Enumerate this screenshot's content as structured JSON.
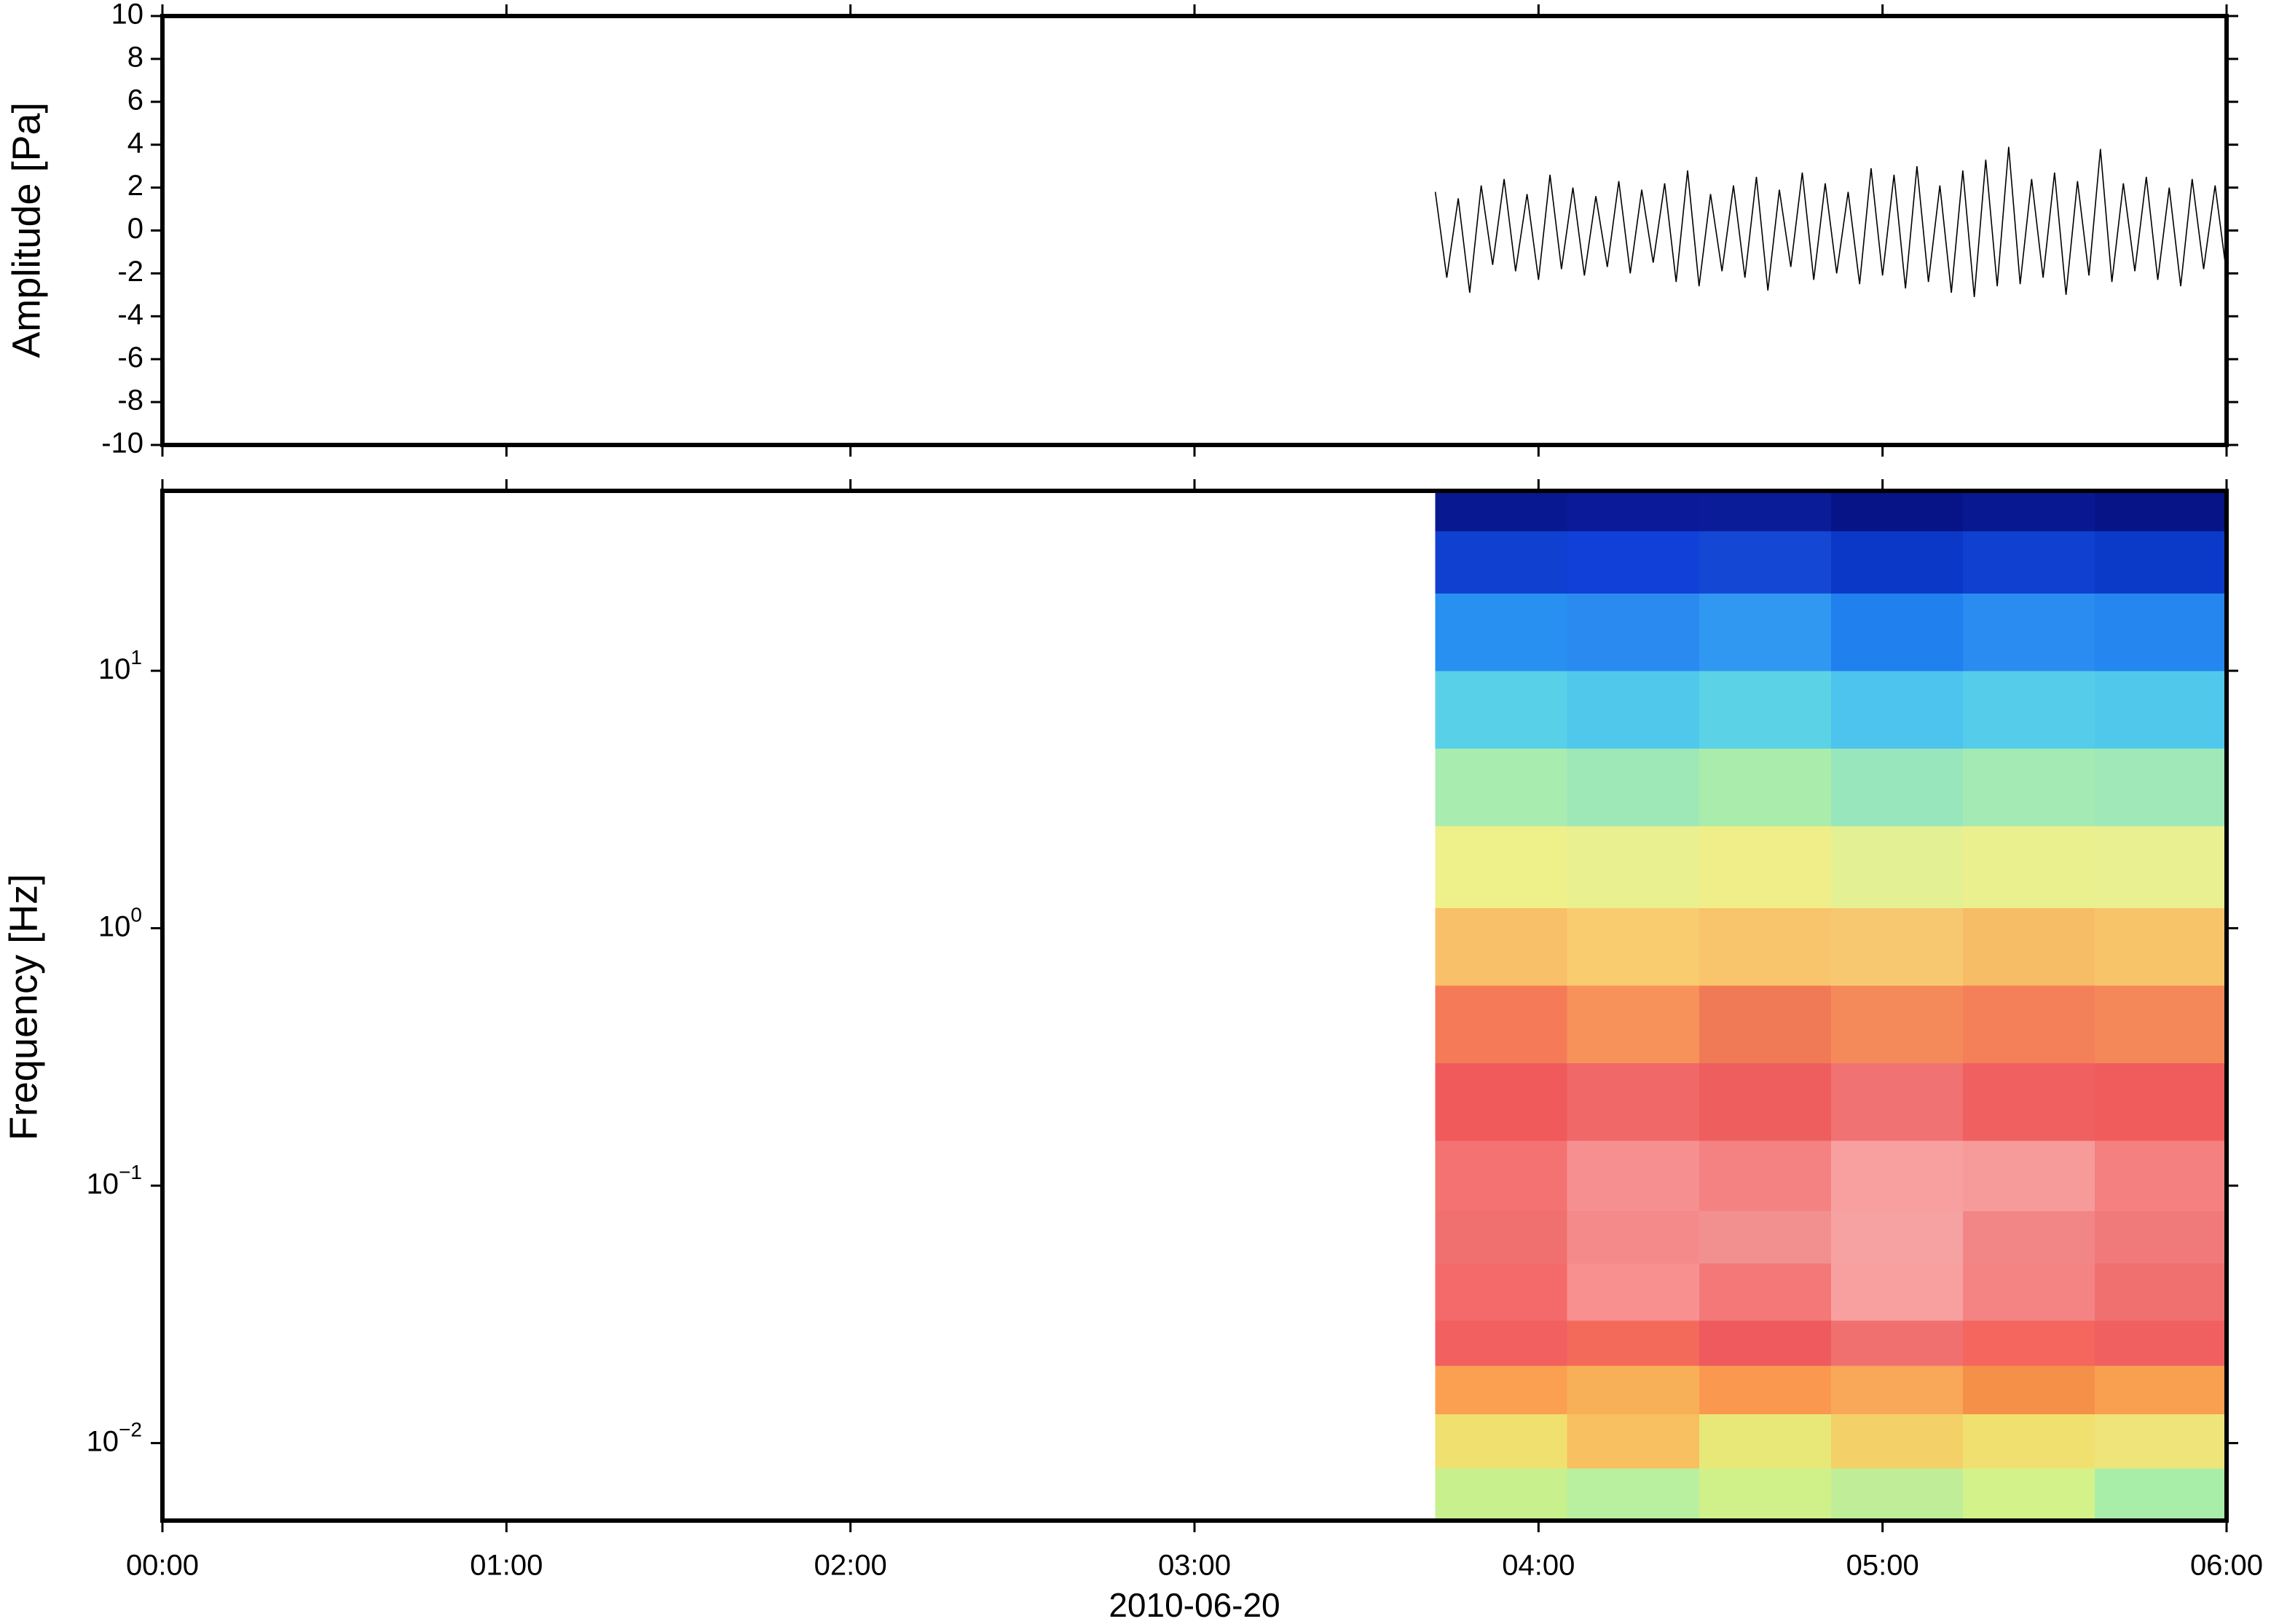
{
  "chart_data": [
    {
      "type": "line",
      "ylabel": "Amplitude [Pa]",
      "color": "#000000",
      "x": [
        222,
        224,
        226,
        228,
        230,
        232,
        234,
        236,
        238,
        240,
        242,
        244,
        246,
        248,
        250,
        252,
        254,
        256,
        258,
        260,
        262,
        264,
        266,
        268,
        270,
        272,
        274,
        276,
        278,
        280,
        282,
        284,
        286,
        288,
        290,
        292,
        294,
        296,
        298,
        300,
        302,
        304,
        306,
        308,
        310,
        312,
        314,
        316,
        318,
        320,
        322,
        324,
        326,
        328,
        330,
        332,
        334,
        336,
        338,
        340,
        342,
        344,
        346,
        348,
        350,
        352,
        354,
        356,
        358,
        360
      ],
      "values": [
        1.8,
        -2.2,
        1.5,
        -2.9,
        2.1,
        -1.6,
        2.4,
        -1.9,
        1.7,
        -2.3,
        2.6,
        -1.8,
        2.0,
        -2.1,
        1.6,
        -1.7,
        2.3,
        -2.0,
        1.9,
        -1.5,
        2.2,
        -2.4,
        2.8,
        -2.6,
        1.7,
        -1.9,
        2.1,
        -2.2,
        2.5,
        -2.8,
        1.9,
        -1.7,
        2.7,
        -2.3,
        2.2,
        -2.0,
        1.8,
        -2.5,
        2.9,
        -2.1,
        2.6,
        -2.7,
        3.0,
        -2.4,
        2.1,
        -2.9,
        2.8,
        -3.1,
        3.3,
        -2.6,
        3.9,
        -2.5,
        2.4,
        -2.2,
        2.7,
        -3.0,
        2.3,
        -2.1,
        3.8,
        -2.4,
        2.2,
        -1.9,
        2.5,
        -2.3,
        2.0,
        -2.6,
        2.4,
        -1.8,
        2.1,
        -2.0
      ],
      "xlim": [
        0,
        360
      ],
      "ylim": [
        -10,
        10
      ],
      "yticks": [
        -10,
        -8,
        -6,
        -4,
        -2,
        0,
        2,
        4,
        6,
        8,
        10
      ]
    },
    {
      "type": "heatmap",
      "ylabel": "Frequency [Hz]",
      "xlabel": "2010-06-20",
      "log_y": true,
      "xlim": [
        0,
        360
      ],
      "ylim": [
        0.005,
        50
      ],
      "xticks": [
        {
          "value": 0,
          "label": "00:00"
        },
        {
          "value": 60,
          "label": "01:00"
        },
        {
          "value": 120,
          "label": "02:00"
        },
        {
          "value": 180,
          "label": "03:00"
        },
        {
          "value": 240,
          "label": "04:00"
        },
        {
          "value": 300,
          "label": "05:00"
        },
        {
          "value": 360,
          "label": "06:00"
        }
      ],
      "yticks": [
        {
          "value": 0.01,
          "label": "10",
          "exponent": "−2"
        },
        {
          "value": 0.1,
          "label": "10",
          "exponent": "−1"
        },
        {
          "value": 1,
          "label": "10",
          "exponent": "0"
        },
        {
          "value": 10,
          "label": "10",
          "exponent": "1"
        }
      ],
      "x_edges": [
        222,
        245,
        268,
        291,
        314,
        337,
        360
      ],
      "y_edges": [
        0.005,
        0.008,
        0.013,
        0.02,
        0.03,
        0.05,
        0.08,
        0.15,
        0.3,
        0.6,
        1.2,
        2.5,
        5,
        10,
        20,
        35,
        50
      ],
      "colors": [
        [
          "#c8f08c",
          "#b8f0a0",
          "#d0f08a",
          "#c0ee98",
          "#d4f28a",
          "#a8eea8"
        ],
        [
          "#f0e070",
          "#f8c060",
          "#e8e878",
          "#f4d068",
          "#f0e070",
          "#eee47a"
        ],
        [
          "#fba050",
          "#f8b058",
          "#fa9850",
          "#f8a858",
          "#f49048",
          "#f8a050"
        ],
        [
          "#f26060",
          "#f46a5a",
          "#ee5a5e",
          "#f07070",
          "#f4665e",
          "#f06060"
        ],
        [
          "#f46a6a",
          "#f89090",
          "#f47878",
          "#f8a0a0",
          "#f48484",
          "#f07070"
        ],
        [
          "#f07070",
          "#f48a8a",
          "#f29090",
          "#f6a2a2",
          "#f28686",
          "#f07a7a"
        ],
        [
          "#f47272",
          "#f69090",
          "#f48282",
          "#f8a0a0",
          "#f69a9a",
          "#f48080"
        ],
        [
          "#f05a5a",
          "#f06868",
          "#ee5e5e",
          "#f07272",
          "#f06060",
          "#f05c5c"
        ],
        [
          "#f47a58",
          "#f6925a",
          "#f07a56",
          "#f48a5a",
          "#f4805a",
          "#f48858"
        ],
        [
          "#f8c068",
          "#facc70",
          "#f8c46c",
          "#f8c870",
          "#f6bc66",
          "#f8c46a"
        ],
        [
          "#eef08a",
          "#e8f090",
          "#f0ee88",
          "#e4f094",
          "#eaf08e",
          "#e8f092"
        ],
        [
          "#a8ecb0",
          "#9ee8b8",
          "#aaecac",
          "#98e6bc",
          "#a4eab4",
          "#a0e8b8"
        ],
        [
          "#58d0e8",
          "#50c8ec",
          "#5cd2e6",
          "#4cc4ee",
          "#54ccea",
          "#50c8ec"
        ],
        [
          "#2890f0",
          "#2a8af0",
          "#3098f0",
          "#2080ee",
          "#2a8cf0",
          "#2486ee"
        ],
        [
          "#1040d0",
          "#1040d8",
          "#1448d4",
          "#0c38c8",
          "#1040d0",
          "#0c3ac8"
        ],
        [
          "#081890",
          "#0a1a98",
          "#0a1c98",
          "#061488",
          "#081890",
          "#061488"
        ]
      ]
    }
  ]
}
